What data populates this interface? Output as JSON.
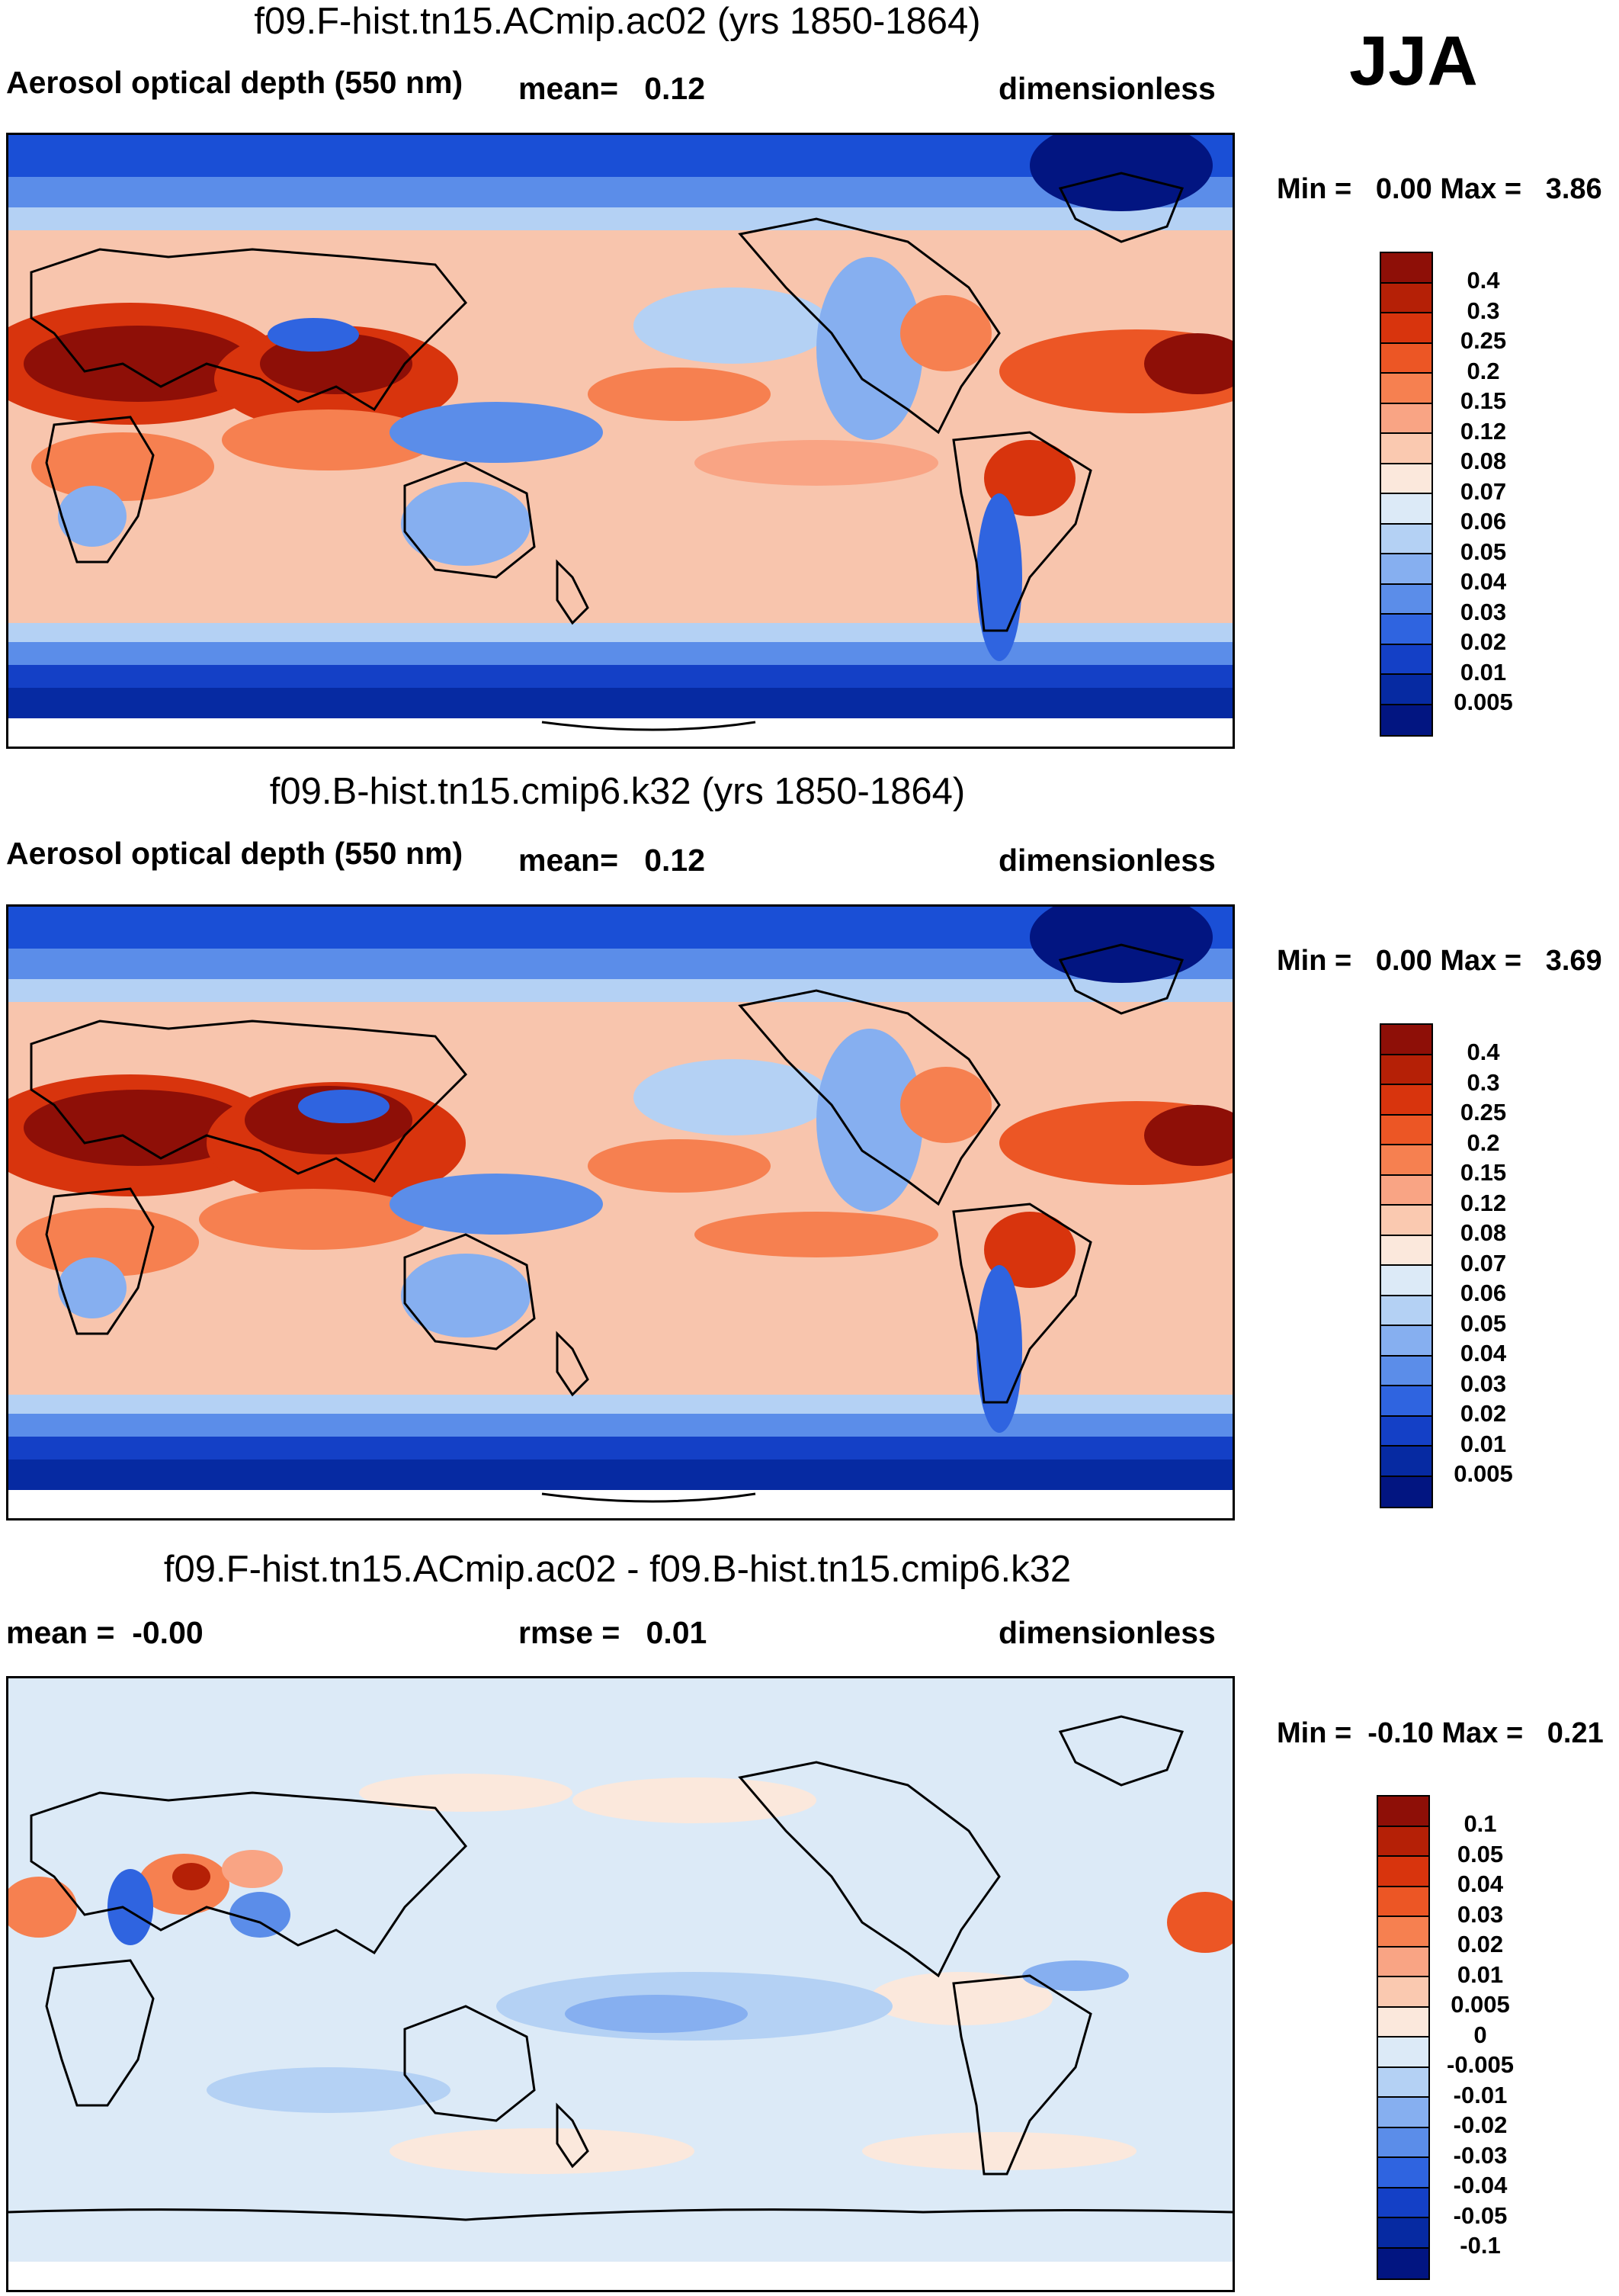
{
  "season": "JJA",
  "panels": [
    {
      "title": "f09.F-hist.tn15.ACmip.ac02 (yrs 1850-1864)",
      "left_label": "Aerosol optical depth (550 nm)",
      "middle_label": "mean=   0.12",
      "units": "dimensionless",
      "minmax": "Min =   0.00 Max =   3.86",
      "colorbar_labels": [
        "0.4",
        "0.3",
        "0.25",
        "0.2",
        "0.15",
        "0.12",
        "0.08",
        "0.07",
        "0.06",
        "0.05",
        "0.04",
        "0.03",
        "0.02",
        "0.01",
        "0.005"
      ],
      "colorbar_colors": [
        "#8e0f07",
        "#b52006",
        "#d8340d",
        "#ec5625",
        "#f68050",
        "#f9a484",
        "#fac9b0",
        "#fbe8dc",
        "#dceaf7",
        "#b4d1f4",
        "#86aff0",
        "#5b8de9",
        "#2f64e0",
        "#1440c6",
        "#062aa2",
        "#021581"
      ]
    },
    {
      "title": "f09.B-hist.tn15.cmip6.k32 (yrs 1850-1864)",
      "left_label": "Aerosol optical depth (550 nm)",
      "middle_label": "mean=   0.12",
      "units": "dimensionless",
      "minmax": "Min =   0.00 Max =   3.69",
      "colorbar_labels": [
        "0.4",
        "0.3",
        "0.25",
        "0.2",
        "0.15",
        "0.12",
        "0.08",
        "0.07",
        "0.06",
        "0.05",
        "0.04",
        "0.03",
        "0.02",
        "0.01",
        "0.005"
      ],
      "colorbar_colors": [
        "#8e0f07",
        "#b52006",
        "#d8340d",
        "#ec5625",
        "#f68050",
        "#f9a484",
        "#fac9b0",
        "#fbe8dc",
        "#dceaf7",
        "#b4d1f4",
        "#86aff0",
        "#5b8de9",
        "#2f64e0",
        "#1440c6",
        "#062aa2",
        "#021581"
      ]
    },
    {
      "title": "f09.F-hist.tn15.ACmip.ac02 - f09.B-hist.tn15.cmip6.k32",
      "left_label": "mean =  -0.00",
      "middle_label": "rmse =   0.01",
      "units": "dimensionless",
      "minmax": "Min =  -0.10 Max =   0.21",
      "colorbar_labels": [
        "0.1",
        "0.05",
        "0.04",
        "0.03",
        "0.02",
        "0.01",
        "0.005",
        "0",
        "-0.005",
        "-0.01",
        "-0.02",
        "-0.03",
        "-0.04",
        "-0.05",
        "-0.1"
      ],
      "colorbar_colors": [
        "#8e0f07",
        "#b52006",
        "#d8340d",
        "#ec5625",
        "#f68050",
        "#f9a484",
        "#fac9b0",
        "#fbe8dc",
        "#dceaf7",
        "#b4d1f4",
        "#86aff0",
        "#5b8de9",
        "#2f64e0",
        "#1440c6",
        "#062aa2",
        "#021581"
      ]
    }
  ]
}
